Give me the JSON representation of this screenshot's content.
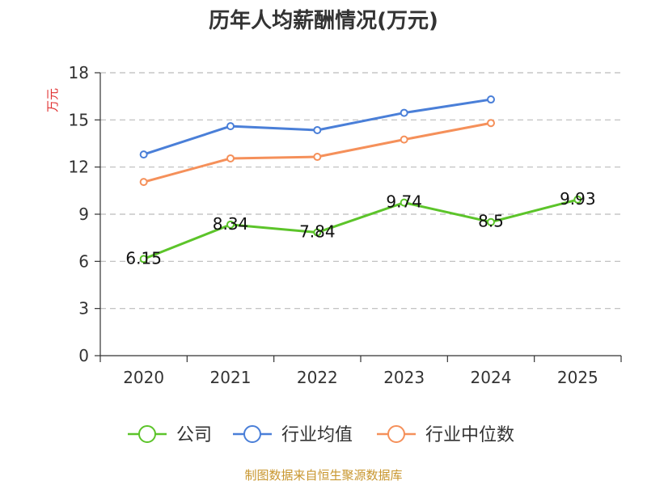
{
  "chart_data": {
    "type": "line",
    "title": "历年人均薪酬情况(万元)",
    "ylabel": "万元",
    "xlabel": "",
    "categories": [
      "2020",
      "2021",
      "2022",
      "2023",
      "2024",
      "2025"
    ],
    "ylim": [
      0,
      18
    ],
    "yticks": [
      0,
      3,
      6,
      9,
      12,
      15,
      18
    ],
    "grid": true,
    "legend_position": "bottom",
    "series": [
      {
        "name": "公司",
        "color": "#5cc42a",
        "values": [
          6.15,
          8.34,
          7.84,
          9.74,
          8.5,
          9.93
        ],
        "labels": [
          "6.15",
          "8.34",
          "7.84",
          "9.74",
          "8.5",
          "9.93"
        ]
      },
      {
        "name": "行业均值",
        "color": "#4a7fd8",
        "values": [
          12.8,
          14.6,
          14.35,
          15.45,
          16.3,
          null
        ]
      },
      {
        "name": "行业中位数",
        "color": "#f5905a",
        "values": [
          11.05,
          12.55,
          12.65,
          13.75,
          14.8,
          null
        ]
      }
    ]
  },
  "source": "制图数据来自恒生聚源数据库"
}
